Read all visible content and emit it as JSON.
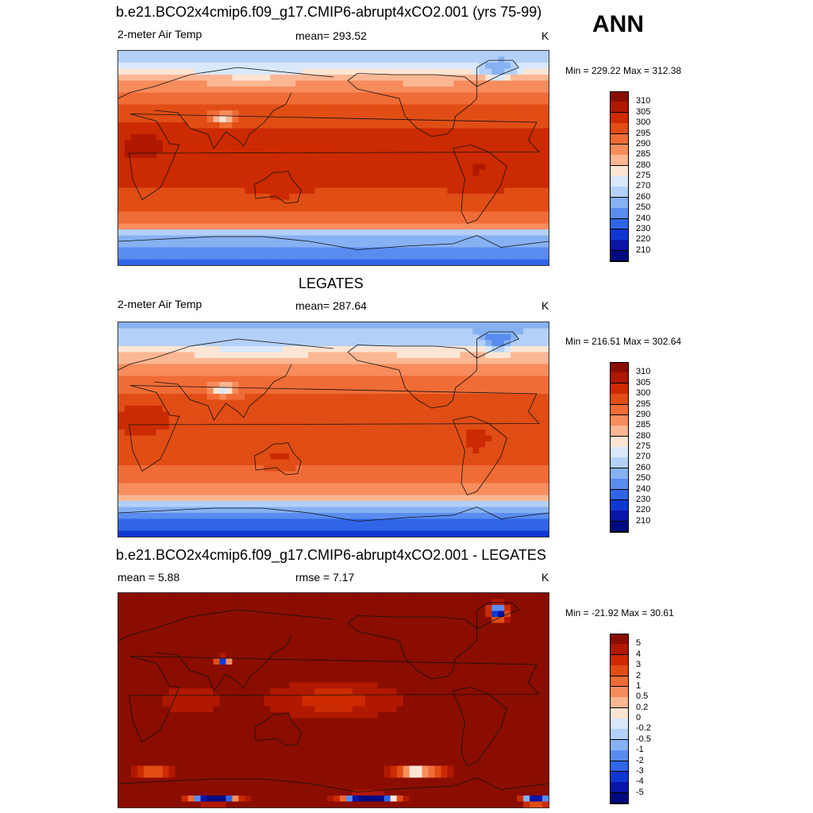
{
  "header": {
    "badge": "ANN"
  },
  "panels": [
    {
      "title": "b.e21.BCO2x4cmip6.f09_g17.CMIP6-abrupt4xCO2.001 (yrs 75-99)",
      "left": "2-meter Air Temp",
      "center": "mean= 293.52",
      "units": "K",
      "minmax": "Min = 229.22 Max = 312.38",
      "kind": "model"
    },
    {
      "title": "LEGATES",
      "left": "2-meter Air Temp",
      "center": "mean= 287.64",
      "units": "K",
      "minmax": "Min = 216.51 Max = 302.64",
      "kind": "obs"
    },
    {
      "title": "b.e21.BCO2x4cmip6.f09_g17.CMIP6-abrupt4xCO2.001 - LEGATES",
      "left": "mean =   5.88",
      "center": "rmse =   7.17",
      "units": "K",
      "minmax": "Min = -21.92 Max =  30.61",
      "kind": "diff"
    }
  ],
  "colorbars": {
    "temperature": {
      "levels": [
        "310",
        "305",
        "300",
        "295",
        "290",
        "285",
        "280",
        "275",
        "270",
        "260",
        "250",
        "240",
        "230",
        "220",
        "210"
      ],
      "colors": [
        "#8a0d00",
        "#b01800",
        "#cc2a00",
        "#e04d15",
        "#f06c36",
        "#f78c5c",
        "#fbb693",
        "#fde5d4",
        "#d9e8fb",
        "#b3d0f8",
        "#86b1f2",
        "#5a8cf0",
        "#3065e8",
        "#1038d0",
        "#0a14a6",
        "#000a80"
      ]
    },
    "difference": {
      "levels": [
        "5",
        "4",
        "3",
        "2",
        "1",
        "0.5",
        "0.2",
        "0",
        "-0.2",
        "-0.5",
        "-1",
        "-2",
        "-3",
        "-4",
        "-5"
      ],
      "colors": [
        "#8a0d00",
        "#b01800",
        "#cc2a00",
        "#e04d15",
        "#f06c36",
        "#f78c5c",
        "#fbb693",
        "#fde5d4",
        "#d9e8fb",
        "#b3d0f8",
        "#86b1f2",
        "#5a8cf0",
        "#3065e8",
        "#1038d0",
        "#0a14a6",
        "#000a80"
      ]
    }
  },
  "chart_data": [
    {
      "type": "heatmap",
      "title": "b.e21.BCO2x4cmip6.f09_g17.CMIP6-abrupt4xCO2.001 (yrs 75-99)",
      "variable": "2-meter Air Temp",
      "units": "K",
      "mean": 293.52,
      "min": 229.22,
      "max": 312.38,
      "contour_levels": [
        210,
        220,
        230,
        240,
        250,
        260,
        270,
        275,
        280,
        285,
        290,
        295,
        300,
        305,
        310
      ]
    },
    {
      "type": "heatmap",
      "title": "LEGATES",
      "variable": "2-meter Air Temp",
      "units": "K",
      "mean": 287.64,
      "min": 216.51,
      "max": 302.64,
      "contour_levels": [
        210,
        220,
        230,
        240,
        250,
        260,
        270,
        275,
        280,
        285,
        290,
        295,
        300,
        305,
        310
      ]
    },
    {
      "type": "heatmap",
      "title": "b.e21.BCO2x4cmip6.f09_g17.CMIP6-abrupt4xCO2.001 - LEGATES",
      "units": "K",
      "mean": 5.88,
      "rmse": 7.17,
      "min": -21.92,
      "max": 30.61,
      "contour_levels": [
        -5,
        -4,
        -3,
        -2,
        -1,
        -0.5,
        -0.2,
        0,
        0.2,
        0.5,
        1,
        2,
        3,
        4,
        5
      ]
    }
  ]
}
